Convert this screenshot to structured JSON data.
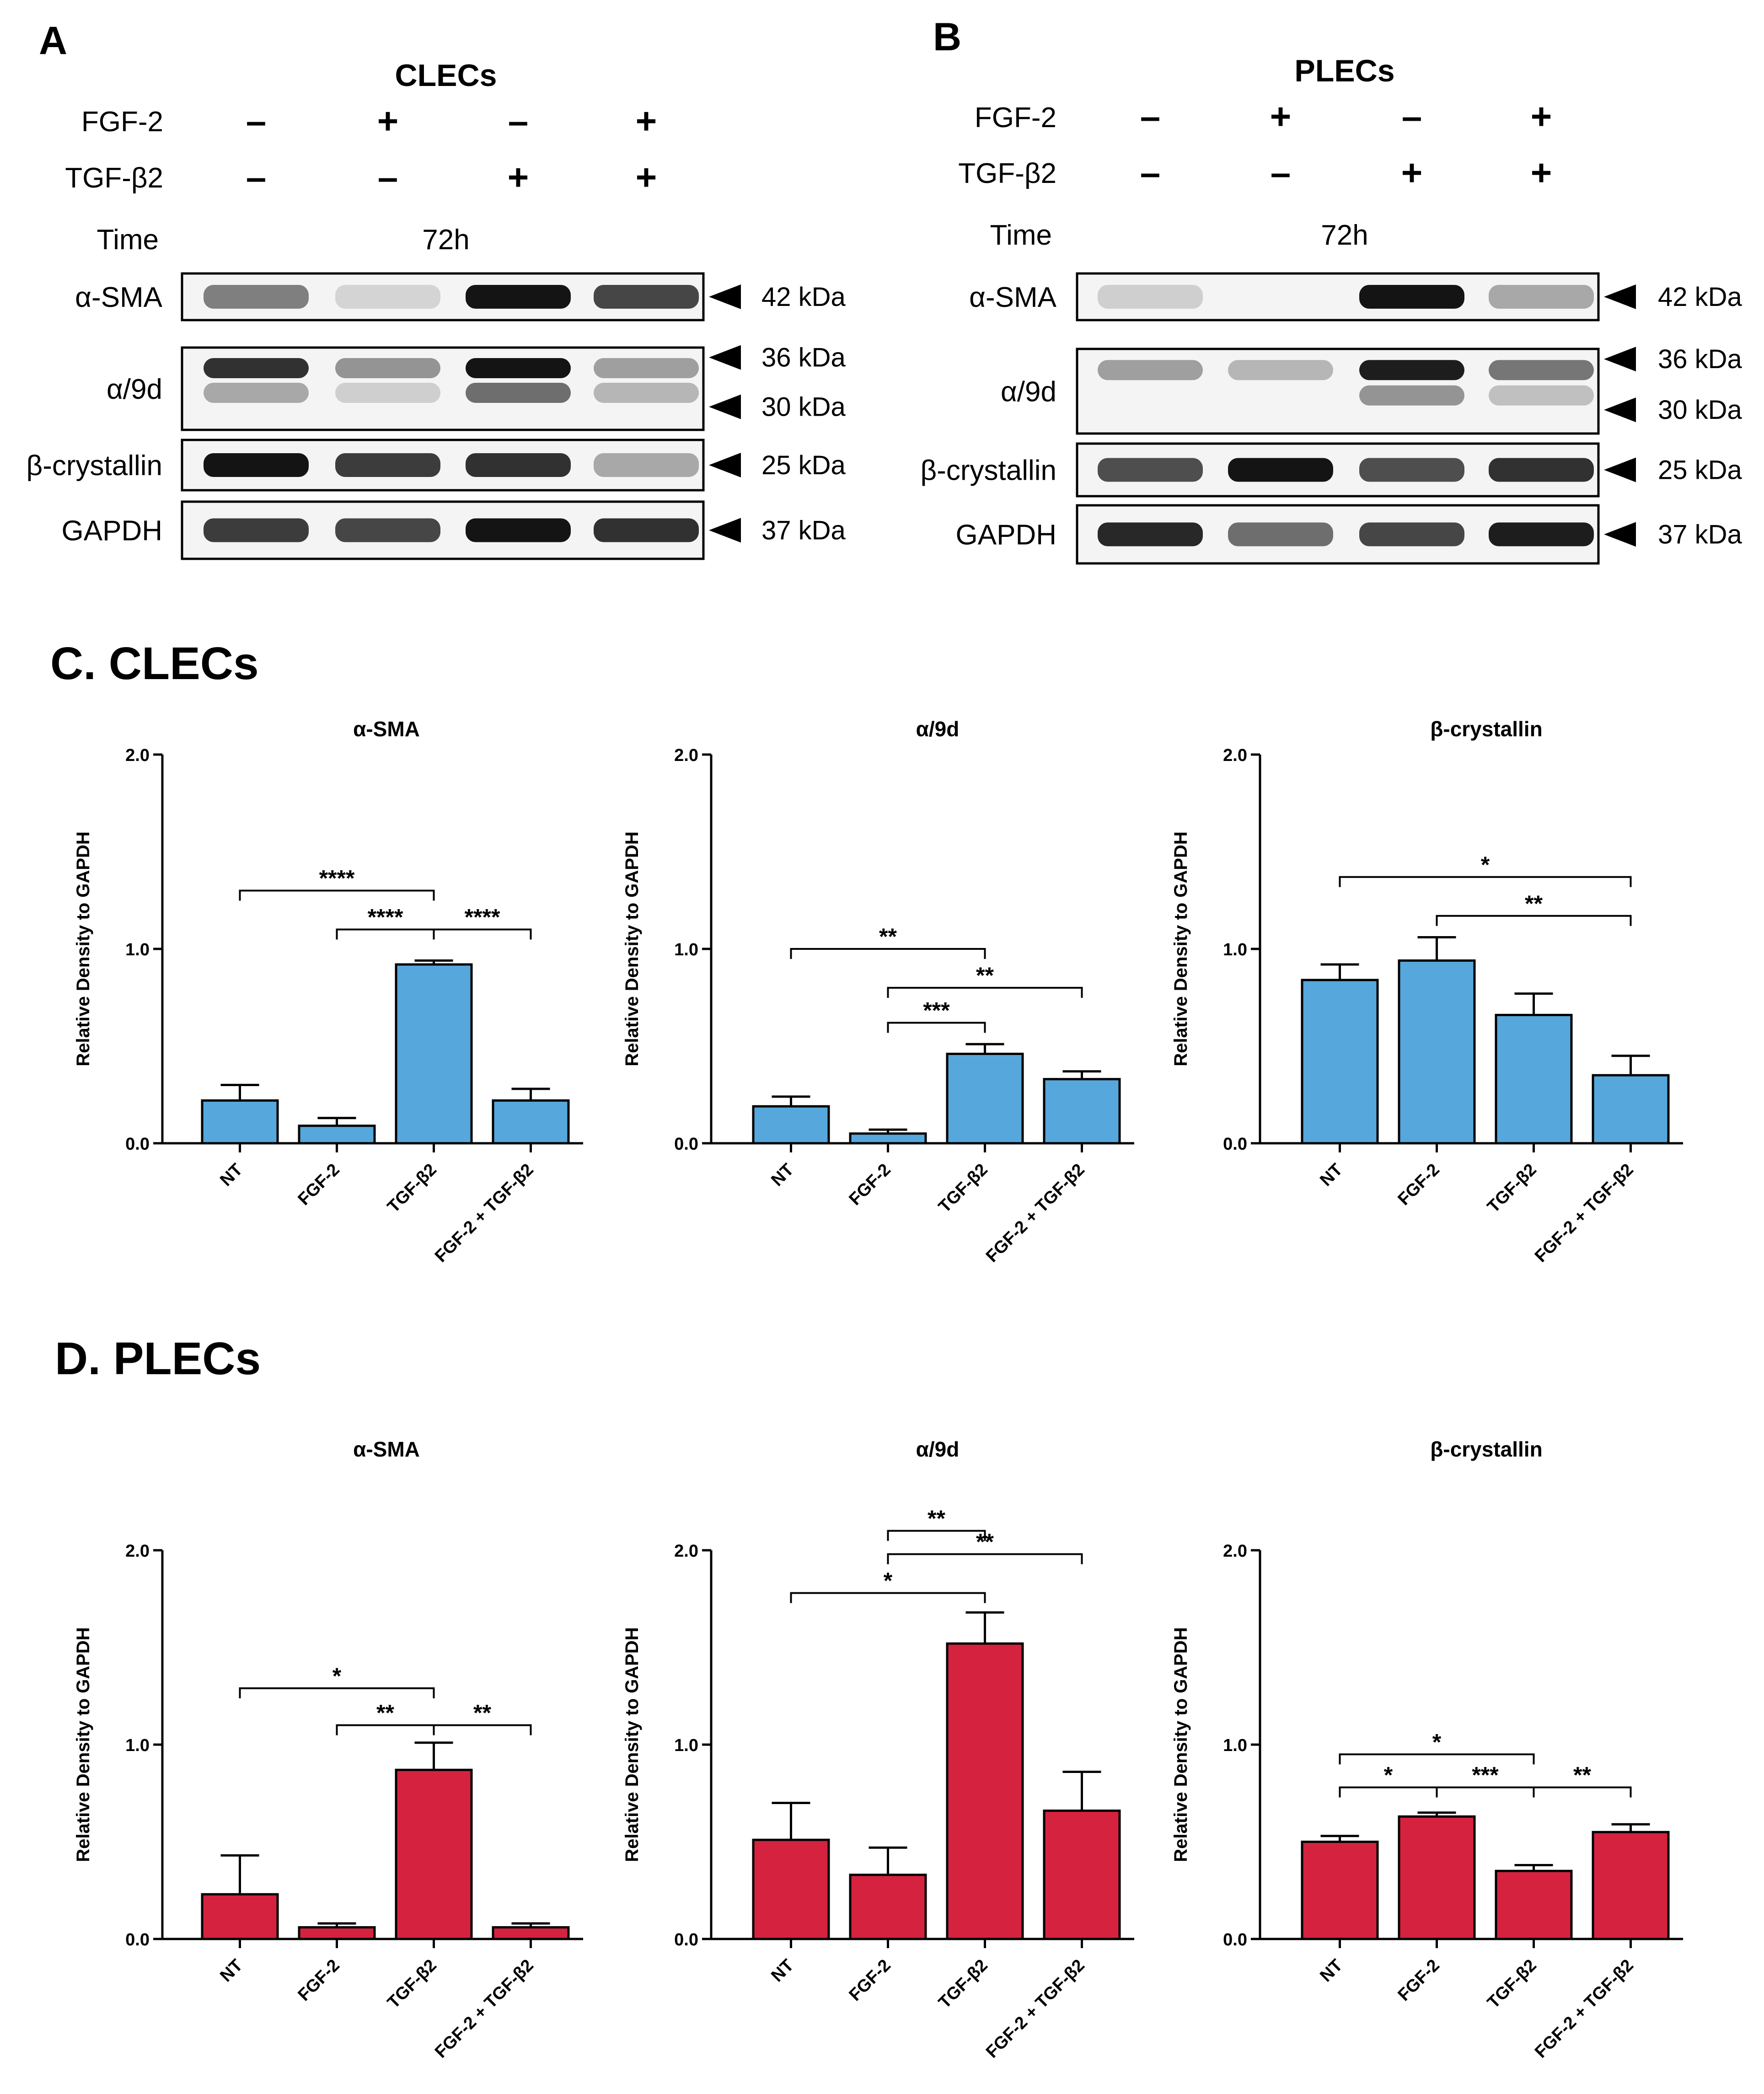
{
  "colors": {
    "clec_bar": "#56A7DB",
    "plec_bar": "#D5223F",
    "ink": "#000000",
    "band": "#141414"
  },
  "blots": [
    {
      "panel_label": "A",
      "cell_type": "CLECs",
      "treatments": [
        {
          "label": "FGF-2",
          "signs": [
            "–",
            "+",
            "–",
            "+"
          ]
        },
        {
          "label": "TGF-β2",
          "signs": [
            "–",
            "–",
            "+",
            "+"
          ]
        }
      ],
      "time_label": "Time",
      "time_value": "72h",
      "rows": [
        {
          "label": "α-SMA",
          "markers": [
            "42 kDa"
          ]
        },
        {
          "label": "α/9d",
          "markers": [
            "36 kDa",
            "30 kDa"
          ]
        },
        {
          "label": "β-crystallin",
          "markers": [
            "25 kDa"
          ]
        },
        {
          "label": "GAPDH",
          "markers": [
            "37 kDa"
          ]
        }
      ],
      "band_intensity": {
        "α-SMA": [
          [
            0.45,
            0.02,
            1.0,
            0.75
          ]
        ],
        "α/9d": [
          [
            0.25,
            0.05,
            0.55,
            0.18
          ],
          [
            0.85,
            0.35,
            1.0,
            0.3
          ]
        ],
        "β-crystallin": [
          [
            1.0,
            0.8,
            0.85,
            0.25
          ]
        ],
        "GAPDH": [
          [
            0.8,
            0.75,
            1.0,
            0.85
          ]
        ]
      }
    },
    {
      "panel_label": "B",
      "cell_type": "PLECs",
      "treatments": [
        {
          "label": "FGF-2",
          "signs": [
            "–",
            "+",
            "–",
            "+"
          ]
        },
        {
          "label": "TGF-β2",
          "signs": [
            "–",
            "–",
            "+",
            "+"
          ]
        }
      ],
      "time_label": "Time",
      "time_value": "72h",
      "rows": [
        {
          "label": "α-SMA",
          "markers": [
            "42 kDa"
          ]
        },
        {
          "label": "α/9d",
          "markers": [
            "36 kDa",
            "30 kDa"
          ]
        },
        {
          "label": "β-crystallin",
          "markers": [
            "25 kDa"
          ]
        },
        {
          "label": "GAPDH",
          "markers": [
            "37 kDa"
          ]
        }
      ],
      "band_intensity": {
        "α-SMA": [
          [
            0.05,
            0.0,
            1.0,
            0.25
          ]
        ],
        "α/9d": [
          [
            0.0,
            0.0,
            0.35,
            0.12
          ],
          [
            0.3,
            0.18,
            0.95,
            0.5
          ]
        ],
        "β-crystallin": [
          [
            0.7,
            1.0,
            0.7,
            0.85
          ]
        ],
        "GAPDH": [
          [
            0.9,
            0.55,
            0.75,
            0.95
          ]
        ]
      }
    }
  ],
  "sections": [
    {
      "title": "C. CLECs"
    },
    {
      "title": "D. PLECs"
    }
  ],
  "chart_data": [
    {
      "type": "bar",
      "title": "α-SMA",
      "group": "C. CLECs",
      "color": "#56A7DB",
      "categories": [
        "NT",
        "FGF-2",
        "TGF-β2",
        "FGF-2 + TGF-β2"
      ],
      "values": [
        0.22,
        0.09,
        0.92,
        0.22
      ],
      "errors": [
        0.08,
        0.04,
        0.02,
        0.06
      ],
      "ylabel": "Relative Density to GAPDH",
      "ylim": [
        0,
        2.0
      ],
      "yticks": [
        "0.0",
        "1.0",
        "2.0"
      ],
      "significance": [
        {
          "from": 0,
          "to": 2,
          "label": "****",
          "y": 1.3
        },
        {
          "from": 1,
          "to": 2,
          "label": "****",
          "y": 1.1
        },
        {
          "from": 2,
          "to": 3,
          "label": "****",
          "y": 1.1
        }
      ]
    },
    {
      "type": "bar",
      "title": "α/9d",
      "group": "C. CLECs",
      "color": "#56A7DB",
      "categories": [
        "NT",
        "FGF-2",
        "TGF-β2",
        "FGF-2 + TGF-β2"
      ],
      "values": [
        0.19,
        0.05,
        0.46,
        0.33
      ],
      "errors": [
        0.05,
        0.02,
        0.05,
        0.04
      ],
      "ylabel": "Relative Density to GAPDH",
      "ylim": [
        0,
        2.0
      ],
      "yticks": [
        "0.0",
        "1.0",
        "2.0"
      ],
      "significance": [
        {
          "from": 0,
          "to": 2,
          "label": "**",
          "y": 1.0
        },
        {
          "from": 1,
          "to": 3,
          "label": "**",
          "y": 0.8
        },
        {
          "from": 1,
          "to": 2,
          "label": "***",
          "y": 0.62
        }
      ]
    },
    {
      "type": "bar",
      "title": "β-crystallin",
      "group": "C. CLECs",
      "color": "#56A7DB",
      "categories": [
        "NT",
        "FGF-2",
        "TGF-β2",
        "FGF-2 + TGF-β2"
      ],
      "values": [
        0.84,
        0.94,
        0.66,
        0.35
      ],
      "errors": [
        0.08,
        0.12,
        0.11,
        0.1
      ],
      "ylabel": "Relative Density to GAPDH",
      "ylim": [
        0,
        2.0
      ],
      "yticks": [
        "0.0",
        "1.0",
        "2.0"
      ],
      "significance": [
        {
          "from": 0,
          "to": 3,
          "label": "*",
          "y": 1.37
        },
        {
          "from": 1,
          "to": 3,
          "label": "**",
          "y": 1.17
        }
      ]
    },
    {
      "type": "bar",
      "title": "α-SMA",
      "group": "D. PLECs",
      "color": "#D5223F",
      "categories": [
        "NT",
        "FGF-2",
        "TGF-β2",
        "FGF-2 + TGF-β2"
      ],
      "values": [
        0.23,
        0.06,
        0.87,
        0.06
      ],
      "errors": [
        0.2,
        0.02,
        0.14,
        0.02
      ],
      "ylabel": "Relative Density to GAPDH",
      "ylim": [
        0,
        2.0
      ],
      "yticks": [
        "0.0",
        "1.0",
        "2.0"
      ],
      "significance": [
        {
          "from": 0,
          "to": 2,
          "label": "*",
          "y": 1.29
        },
        {
          "from": 1,
          "to": 2,
          "label": "**",
          "y": 1.1
        },
        {
          "from": 2,
          "to": 3,
          "label": "**",
          "y": 1.1
        }
      ]
    },
    {
      "type": "bar",
      "title": "α/9d",
      "group": "D. PLECs",
      "color": "#D5223F",
      "categories": [
        "NT",
        "FGF-2",
        "TGF-β2",
        "FGF-2 + TGF-β2"
      ],
      "values": [
        0.51,
        0.33,
        1.52,
        0.66
      ],
      "errors": [
        0.19,
        0.14,
        0.16,
        0.2
      ],
      "ylabel": "Relative Density to GAPDH",
      "ylim": [
        0,
        2.0
      ],
      "yticks": [
        "0.0",
        "1.0",
        "2.0"
      ],
      "significance": [
        {
          "from": 1,
          "to": 2,
          "label": "**",
          "y": 2.1
        },
        {
          "from": 1,
          "to": 3,
          "label": "**",
          "y": 1.98
        },
        {
          "from": 0,
          "to": 2,
          "label": "*",
          "y": 1.78
        }
      ]
    },
    {
      "type": "bar",
      "title": "β-crystallin",
      "group": "D. PLECs",
      "color": "#D5223F",
      "categories": [
        "NT",
        "FGF-2",
        "TGF-β2",
        "FGF-2 + TGF-β2"
      ],
      "values": [
        0.5,
        0.63,
        0.35,
        0.55
      ],
      "errors": [
        0.03,
        0.02,
        0.03,
        0.04
      ],
      "ylabel": "Relative Density to GAPDH",
      "ylim": [
        0,
        2.0
      ],
      "yticks": [
        "0.0",
        "1.0",
        "2.0"
      ],
      "significance": [
        {
          "from": 0,
          "to": 2,
          "label": "*",
          "y": 0.95
        },
        {
          "from": 0,
          "to": 1,
          "label": "*",
          "y": 0.78
        },
        {
          "from": 1,
          "to": 2,
          "label": "***",
          "y": 0.78
        },
        {
          "from": 2,
          "to": 3,
          "label": "**",
          "y": 0.78
        }
      ]
    }
  ]
}
